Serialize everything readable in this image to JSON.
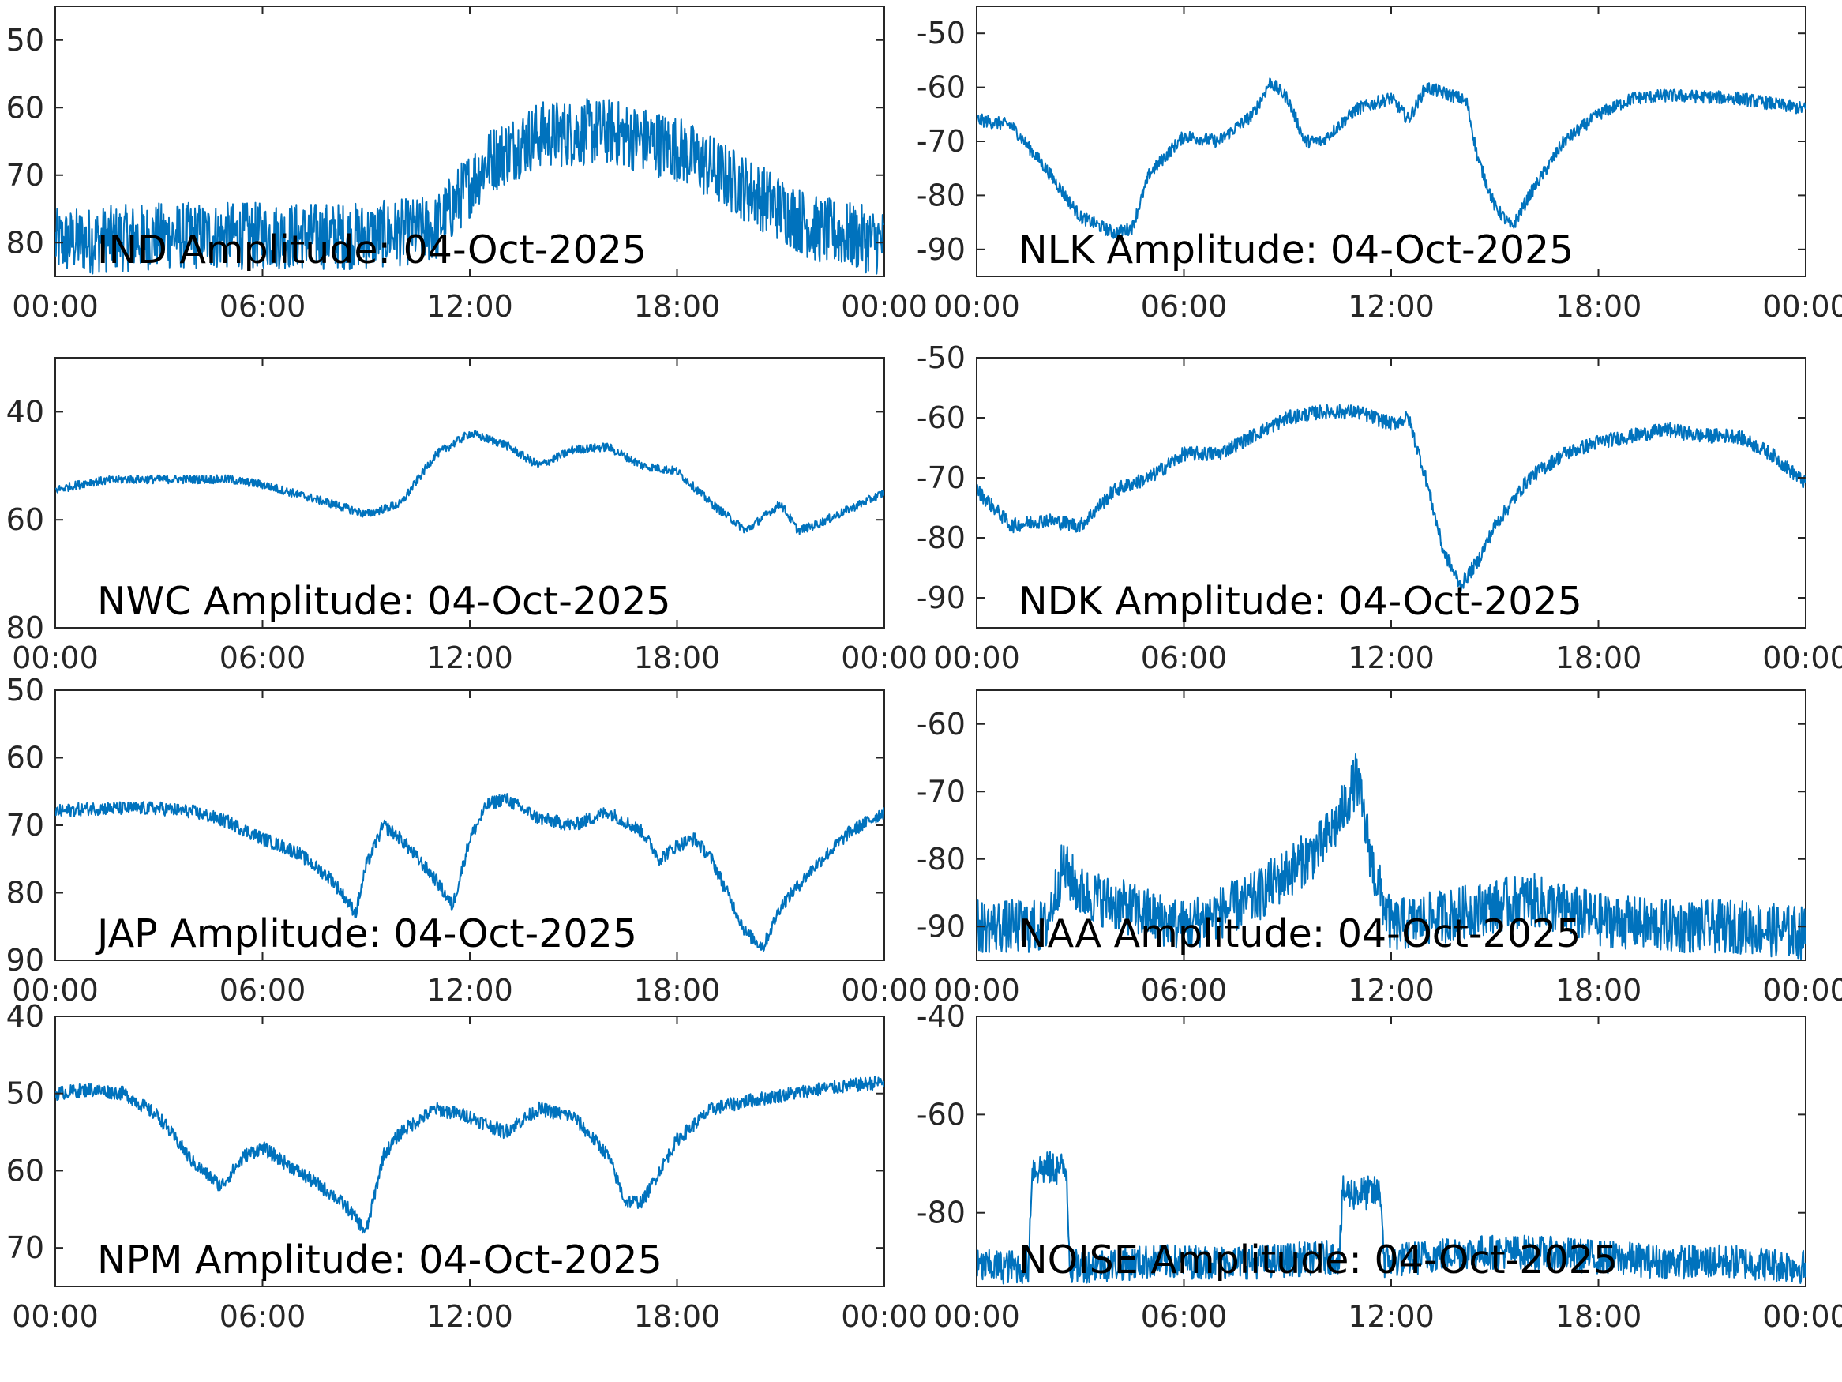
{
  "figure": {
    "line_color": "#0072BD",
    "axis_color": "#262626",
    "background": "#ffffff"
  },
  "chart_data": [
    {
      "id": "ind",
      "type": "line",
      "title": "IND Amplitude: 04-Oct-2025",
      "xlabel": "",
      "ylabel": "",
      "xlim": [
        0,
        24
      ],
      "ylim": [
        -85,
        -45
      ],
      "y_reversed": true,
      "yticks": [
        -50,
        -60,
        -70,
        -80
      ],
      "ytick_labels": [
        "50",
        "60",
        "70",
        "80"
      ],
      "xticks": [
        0,
        6,
        12,
        18,
        24
      ],
      "xtick_labels": [
        "00:00",
        "06:00",
        "12:00",
        "18:00",
        "00:00"
      ],
      "noise_band": 5,
      "x": [
        0,
        3,
        6,
        9,
        11,
        12.5,
        14,
        16,
        18,
        20,
        22,
        24
      ],
      "y": [
        -80,
        -79,
        -79,
        -79,
        -78,
        -68,
        -64,
        -63.5,
        -66,
        -72,
        -78,
        -80
      ]
    },
    {
      "id": "nlk",
      "type": "line",
      "title": "NLK Amplitude: 04-Oct-2025",
      "xlabel": "",
      "ylabel": "",
      "xlim": [
        0,
        24
      ],
      "ylim": [
        -95,
        -45
      ],
      "y_reversed": false,
      "yticks": [
        -50,
        -60,
        -70,
        -80,
        -90
      ],
      "ytick_labels": [
        "-50",
        "-60",
        "-70",
        "-80",
        "-90"
      ],
      "xticks": [
        0,
        6,
        12,
        18,
        24
      ],
      "xtick_labels": [
        "00:00",
        "06:00",
        "12:00",
        "18:00",
        "00:00"
      ],
      "noise_band": 1.2,
      "x": [
        0,
        1,
        2,
        3,
        4,
        4.5,
        5,
        6,
        7,
        8,
        8.5,
        9,
        9.5,
        10,
        11,
        12,
        12.5,
        13,
        14,
        14.2,
        14.5,
        15,
        15.5,
        16,
        17,
        18,
        19,
        20,
        22,
        23,
        24
      ],
      "y": [
        -66,
        -67,
        -75,
        -84,
        -87,
        -86,
        -76,
        -69,
        -70,
        -65,
        -59,
        -62,
        -70,
        -70,
        -64,
        -62,
        -66,
        -60,
        -62,
        -63,
        -73,
        -82,
        -86,
        -80,
        -70,
        -65,
        -62,
        -61.5,
        -62,
        -63,
        -64
      ]
    },
    {
      "id": "nwc",
      "type": "line",
      "title": "NWC Amplitude: 04-Oct-2025",
      "xlabel": "",
      "ylabel": "",
      "xlim": [
        0,
        24
      ],
      "ylim": [
        -80,
        -30
      ],
      "y_reversed": true,
      "yticks": [
        -40,
        -60,
        -80
      ],
      "ytick_labels": [
        "40",
        "60",
        "80"
      ],
      "xticks": [
        0,
        6,
        12,
        18,
        24
      ],
      "xtick_labels": [
        "00:00",
        "06:00",
        "12:00",
        "18:00",
        "00:00"
      ],
      "noise_band": 0.8,
      "x": [
        0,
        1,
        2,
        3,
        5,
        6,
        8,
        9,
        10,
        11,
        12,
        13,
        14,
        15,
        16,
        17,
        18,
        19,
        20,
        21,
        21.5,
        22,
        24
      ],
      "y": [
        -54.5,
        -53,
        -52.5,
        -52.5,
        -52.5,
        -53.5,
        -57,
        -59,
        -57,
        -48,
        -44,
        -46,
        -50,
        -47,
        -46.5,
        -50,
        -51,
        -57,
        -62,
        -57,
        -62,
        -61,
        -55
      ]
    },
    {
      "id": "ndk",
      "type": "line",
      "title": "NDK Amplitude: 04-Oct-2025",
      "xlabel": "",
      "ylabel": "",
      "xlim": [
        0,
        24
      ],
      "ylim": [
        -95,
        -50
      ],
      "y_reversed": false,
      "yticks": [
        -50,
        -60,
        -70,
        -80,
        -90
      ],
      "ytick_labels": [
        "-50",
        "-60",
        "-70",
        "-80",
        "-90"
      ],
      "xticks": [
        0,
        6,
        12,
        18,
        24
      ],
      "xtick_labels": [
        "00:00",
        "06:00",
        "12:00",
        "18:00",
        "00:00"
      ],
      "noise_band": 1.2,
      "x": [
        0,
        1,
        2,
        3,
        4,
        5,
        6,
        7,
        8,
        9,
        10,
        11,
        12,
        12.5,
        13,
        13.5,
        14,
        14.5,
        15,
        16,
        17,
        18,
        19,
        20,
        21,
        22,
        23,
        24
      ],
      "y": [
        -72,
        -78,
        -77,
        -78,
        -72,
        -70,
        -66,
        -66,
        -63,
        -60,
        -59,
        -59,
        -61,
        -60,
        -70,
        -82,
        -88,
        -84,
        -78,
        -70,
        -66,
        -64,
        -63,
        -62,
        -63,
        -63,
        -66,
        -71
      ]
    },
    {
      "id": "jap",
      "type": "line",
      "title": "JAP Amplitude: 04-Oct-2025",
      "xlabel": "",
      "ylabel": "",
      "xlim": [
        0,
        24
      ],
      "ylim": [
        -90,
        -50
      ],
      "y_reversed": true,
      "yticks": [
        -50,
        -60,
        -70,
        -80,
        -90
      ],
      "ytick_labels": [
        "50",
        "60",
        "70",
        "80",
        "90"
      ],
      "xticks": [
        0,
        6,
        12,
        18,
        24
      ],
      "xtick_labels": [
        "00:00",
        "06:00",
        "12:00",
        "18:00",
        "00:00"
      ],
      "noise_band": 1.0,
      "x": [
        0,
        1,
        2,
        3,
        4,
        5,
        6,
        7,
        8,
        8.7,
        9,
        9.5,
        10,
        11,
        11.5,
        12,
        12.5,
        13,
        14,
        15,
        16,
        17,
        17.5,
        18,
        18.5,
        19,
        20,
        20.5,
        21,
        22,
        23,
        24
      ],
      "y": [
        -68,
        -67.5,
        -67.5,
        -67.5,
        -68,
        -69.5,
        -72,
        -74,
        -78,
        -83,
        -76,
        -70,
        -72,
        -78,
        -82,
        -72,
        -67,
        -66,
        -69,
        -70,
        -68,
        -71,
        -75,
        -73,
        -72,
        -75,
        -86,
        -88,
        -82,
        -76,
        -71,
        -68
      ]
    },
    {
      "id": "naa",
      "type": "line",
      "title": "NAA Amplitude: 04-Oct-2025",
      "xlabel": "",
      "ylabel": "",
      "xlim": [
        0,
        24
      ],
      "ylim": [
        -95,
        -55
      ],
      "y_reversed": false,
      "yticks": [
        -60,
        -70,
        -80,
        -90
      ],
      "ytick_labels": [
        "-60",
        "-70",
        "-80",
        "-90"
      ],
      "xticks": [
        0,
        6,
        12,
        18,
        24
      ],
      "xtick_labels": [
        "00:00",
        "06:00",
        "12:00",
        "18:00",
        "00:00"
      ],
      "noise_band": 4,
      "x": [
        0,
        2,
        2.5,
        3,
        6,
        8,
        9,
        10,
        10.5,
        11,
        11.5,
        12,
        14,
        16,
        18,
        20,
        22,
        24
      ],
      "y": [
        -90,
        -90,
        -81,
        -85,
        -90,
        -86,
        -82,
        -78,
        -74,
        -68,
        -82,
        -90,
        -88,
        -86,
        -89,
        -90,
        -90,
        -91
      ]
    },
    {
      "id": "npm",
      "type": "line",
      "title": "NPM Amplitude: 04-Oct-2025",
      "xlabel": "",
      "ylabel": "",
      "xlim": [
        0,
        24
      ],
      "ylim": [
        -75,
        -40
      ],
      "y_reversed": true,
      "yticks": [
        -40,
        -50,
        -60,
        -70
      ],
      "ytick_labels": [
        "40",
        "50",
        "60",
        "70"
      ],
      "xticks": [
        0,
        6,
        12,
        18,
        24
      ],
      "xtick_labels": [
        "00:00",
        "06:00",
        "12:00",
        "18:00",
        "00:00"
      ],
      "noise_band": 0.9,
      "x": [
        0,
        1,
        2,
        3,
        4,
        4.8,
        5.5,
        6,
        7,
        8,
        8.5,
        9,
        9.5,
        10,
        11,
        12,
        13,
        14,
        15,
        16,
        16.5,
        17,
        18,
        19,
        20,
        22,
        24
      ],
      "y": [
        -50,
        -49.5,
        -50,
        -53,
        -59,
        -62,
        -58,
        -57,
        -60,
        -63,
        -65,
        -68,
        -58,
        -55,
        -52,
        -53,
        -55,
        -52,
        -53,
        -58,
        -64,
        -64,
        -56,
        -52,
        -51,
        -49.5,
        -48.5
      ]
    },
    {
      "id": "noise",
      "type": "line",
      "title": "NOISE Amplitude: 04-Oct-2025",
      "xlabel": "",
      "ylabel": "",
      "xlim": [
        0,
        24
      ],
      "ylim": [
        -95,
        -40
      ],
      "y_reversed": false,
      "yticks": [
        -40,
        -60,
        -80
      ],
      "ytick_labels": [
        "-40",
        "-60",
        "-80"
      ],
      "xticks": [
        0,
        6,
        12,
        18,
        24
      ],
      "xtick_labels": [
        "00:00",
        "06:00",
        "12:00",
        "18:00",
        "00:00"
      ],
      "noise_band": 3.5,
      "x": [
        0,
        1.5,
        1.6,
        2.6,
        2.7,
        5,
        8,
        10.5,
        10.6,
        11.7,
        11.8,
        14,
        16,
        18,
        20,
        22,
        24
      ],
      "y": [
        -91,
        -91,
        -71,
        -71,
        -91,
        -90,
        -90,
        -89,
        -76,
        -76,
        -90,
        -88,
        -88,
        -89,
        -90,
        -90,
        -91
      ]
    }
  ]
}
